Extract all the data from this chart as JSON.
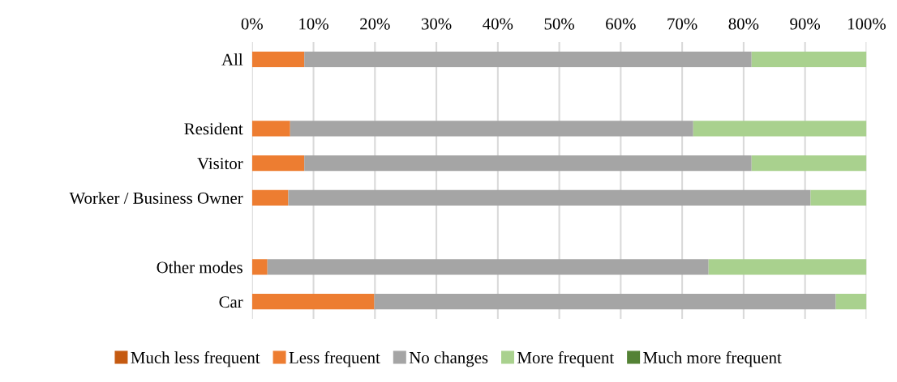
{
  "chart_data": {
    "type": "bar",
    "orientation": "horizontal",
    "stacked": true,
    "categories": [
      "All",
      null,
      "Resident",
      "Visitor",
      "Worker / Business Owner",
      null,
      "Other modes",
      "Car"
    ],
    "series": [
      {
        "name": "Much less frequent",
        "color": "#c55a11",
        "values": [
          0,
          null,
          0,
          0,
          0,
          null,
          0,
          0
        ]
      },
      {
        "name": "Less frequent",
        "color": "#ed7d31",
        "values": [
          8.5,
          null,
          6.2,
          8.5,
          5.9,
          null,
          2.5,
          19.9
        ]
      },
      {
        "name": "No changes",
        "color": "#a5a5a5",
        "values": [
          72.8,
          null,
          65.6,
          72.8,
          85.0,
          null,
          71.8,
          75.1
        ]
      },
      {
        "name": "More frequent",
        "color": "#a9d18e",
        "values": [
          18.7,
          null,
          28.2,
          18.7,
          9.1,
          null,
          25.7,
          5.0
        ]
      },
      {
        "name": "Much more frequent",
        "color": "#548235",
        "values": [
          0,
          null,
          0,
          0,
          0,
          null,
          0,
          0
        ]
      }
    ],
    "xlim": [
      0,
      100
    ],
    "xticks": [
      {
        "value": 0,
        "label": "0%"
      },
      {
        "value": 10,
        "label": "10%"
      },
      {
        "value": 20,
        "label": "20%"
      },
      {
        "value": 30,
        "label": "30%"
      },
      {
        "value": 40,
        "label": "40%"
      },
      {
        "value": 50,
        "label": "50%"
      },
      {
        "value": 60,
        "label": "60%"
      },
      {
        "value": 70,
        "label": "70%"
      },
      {
        "value": 80,
        "label": "80%"
      },
      {
        "value": 90,
        "label": "90%"
      },
      {
        "value": 100,
        "label": "100%"
      }
    ],
    "grid": "x",
    "legend": "bottom"
  }
}
